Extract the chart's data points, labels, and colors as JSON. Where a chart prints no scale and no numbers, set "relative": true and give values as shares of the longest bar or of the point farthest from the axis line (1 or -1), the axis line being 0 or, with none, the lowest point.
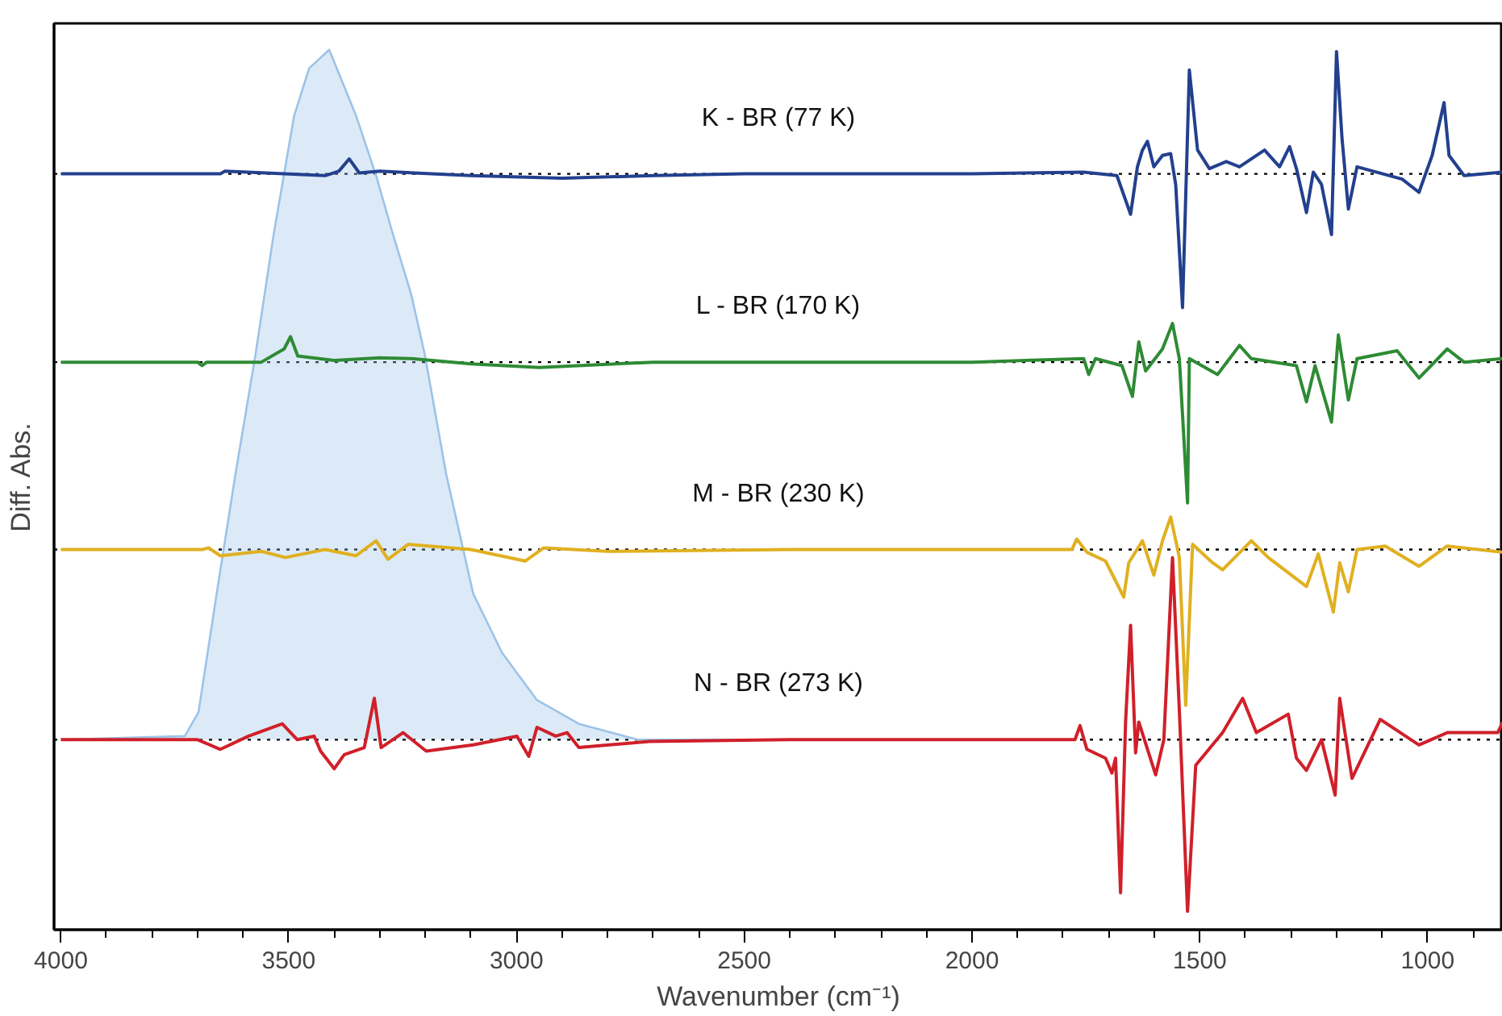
{
  "chart_data": {
    "type": "line",
    "relative": true,
    "xlabel": "Wavenumber (cm⁻¹)",
    "ylabel": "Diff. Abs.",
    "xlim": [
      4015,
      835
    ],
    "xticks": [
      4000,
      3500,
      3000,
      2500,
      2000,
      1500,
      1000,
      {
        "value": 3900,
        "label": null
      },
      {
        "value": 3800,
        "label": null
      },
      {
        "value": 3700,
        "label": null
      },
      {
        "value": 3600,
        "label": null
      },
      {
        "value": 3400,
        "label": null
      },
      {
        "value": 3300,
        "label": null
      },
      {
        "value": 3200,
        "label": null
      },
      {
        "value": 3100,
        "label": null
      },
      {
        "value": 2900,
        "label": null
      },
      {
        "value": 2800,
        "label": null
      },
      {
        "value": 2700,
        "label": null
      },
      {
        "value": 2600,
        "label": null
      },
      {
        "value": 2400,
        "label": null
      },
      {
        "value": 2300,
        "label": null
      },
      {
        "value": 2200,
        "label": null
      },
      {
        "value": 2100,
        "label": null
      },
      {
        "value": 1900,
        "label": null
      },
      {
        "value": 1800,
        "label": null
      },
      {
        "value": 1700,
        "label": null
      },
      {
        "value": 1600,
        "label": null
      },
      {
        "value": 1400,
        "label": null
      },
      {
        "value": 1300,
        "label": null
      },
      {
        "value": 1200,
        "label": null
      },
      {
        "value": 1100,
        "label": null
      },
      {
        "value": 900,
        "label": null
      }
    ],
    "grid": false,
    "legend": false,
    "line_style": "solid",
    "marker": "none",
    "ref_lines": [
      {
        "axis": "y",
        "value": 0.859,
        "color": "#000000",
        "line_style": "dotted"
      },
      {
        "axis": "y",
        "value": 0.645,
        "color": "#000000",
        "line_style": "dotted"
      },
      {
        "axis": "y",
        "value": 0.432,
        "color": "#000000",
        "line_style": "dotted"
      },
      {
        "axis": "y",
        "value": 0.216,
        "color": "#000000",
        "line_style": "dotted"
      }
    ],
    "series": [
      {
        "type": "area",
        "color": "#9cc3e8",
        "x": [
          4000,
          3728,
          3698,
          3658,
          3617,
          3573,
          3533,
          3488,
          3455,
          3411,
          3352,
          3308,
          3271,
          3231,
          3201,
          3154,
          3095,
          3032,
          2955,
          2863,
          2734,
          2399
        ],
        "values": [
          0.216,
          0.22,
          0.247,
          0.382,
          0.517,
          0.653,
          0.79,
          0.925,
          0.979,
          1.0,
          0.925,
          0.857,
          0.79,
          0.722,
          0.653,
          0.517,
          0.382,
          0.315,
          0.261,
          0.234,
          0.216,
          0.216
        ]
      },
      {
        "name": "K - BR (77 K)",
        "color": "#23408e",
        "x": [
          4000,
          3650,
          3640,
          3420,
          3390,
          3367,
          3345,
          3300,
          3100,
          2900,
          2700,
          2500,
          2000,
          1755,
          1682,
          1652,
          1637,
          1626,
          1615,
          1601,
          1582,
          1564,
          1553,
          1538,
          1523,
          1505,
          1479,
          1442,
          1413,
          1358,
          1325,
          1303,
          1288,
          1266,
          1251,
          1233,
          1211,
          1200,
          1188,
          1174,
          1155,
          1056,
          1019,
          990,
          964,
          953,
          920,
          835
        ],
        "values": [
          0.859,
          0.859,
          0.862,
          0.857,
          0.862,
          0.876,
          0.86,
          0.862,
          0.857,
          0.854,
          0.857,
          0.859,
          0.859,
          0.861,
          0.857,
          0.813,
          0.867,
          0.886,
          0.896,
          0.867,
          0.88,
          0.882,
          0.847,
          0.707,
          0.977,
          0.886,
          0.865,
          0.873,
          0.867,
          0.886,
          0.867,
          0.89,
          0.865,
          0.815,
          0.861,
          0.847,
          0.79,
          0.998,
          0.9,
          0.819,
          0.867,
          0.853,
          0.838,
          0.88,
          0.94,
          0.88,
          0.857,
          0.861
        ]
      },
      {
        "name": "L - BR (170 K)",
        "color": "#2e8b34",
        "x": [
          4000,
          3700,
          3690,
          3680,
          3560,
          3510,
          3496,
          3480,
          3400,
          3300,
          3230,
          3100,
          2950,
          2700,
          2400,
          2000,
          1755,
          1744,
          1729,
          1671,
          1648,
          1634,
          1619,
          1582,
          1560,
          1545,
          1527,
          1523,
          1461,
          1413,
          1387,
          1288,
          1266,
          1247,
          1211,
          1196,
          1174,
          1155,
          1067,
          1019,
          957,
          920,
          835
        ],
        "values": [
          0.645,
          0.645,
          0.641,
          0.645,
          0.645,
          0.66,
          0.674,
          0.652,
          0.647,
          0.65,
          0.649,
          0.643,
          0.639,
          0.645,
          0.645,
          0.645,
          0.649,
          0.631,
          0.649,
          0.641,
          0.606,
          0.668,
          0.635,
          0.66,
          0.689,
          0.649,
          0.485,
          0.649,
          0.631,
          0.664,
          0.649,
          0.641,
          0.6,
          0.641,
          0.577,
          0.676,
          0.602,
          0.649,
          0.658,
          0.627,
          0.66,
          0.645,
          0.649
        ]
      },
      {
        "name": "M - BR (230 K)",
        "color": "#e0b020",
        "x": [
          4000,
          3690,
          3676,
          3650,
          3560,
          3507,
          3420,
          3352,
          3308,
          3282,
          3238,
          3100,
          2981,
          2940,
          2800,
          2400,
          2000,
          1781,
          1770,
          1748,
          1707,
          1667,
          1656,
          1626,
          1601,
          1582,
          1564,
          1545,
          1531,
          1516,
          1472,
          1450,
          1387,
          1350,
          1266,
          1240,
          1207,
          1193,
          1174,
          1155,
          1093,
          1019,
          957,
          835
        ],
        "values": [
          0.432,
          0.432,
          0.434,
          0.425,
          0.43,
          0.423,
          0.432,
          0.425,
          0.442,
          0.421,
          0.438,
          0.432,
          0.419,
          0.434,
          0.43,
          0.432,
          0.432,
          0.432,
          0.444,
          0.429,
          0.419,
          0.378,
          0.417,
          0.442,
          0.403,
          0.442,
          0.469,
          0.423,
          0.255,
          0.438,
          0.417,
          0.409,
          0.442,
          0.423,
          0.39,
          0.427,
          0.361,
          0.417,
          0.384,
          0.432,
          0.436,
          0.413,
          0.436,
          0.429
        ]
      },
      {
        "name": "N - BR (273 K)",
        "color": "#d0202a",
        "x": [
          4000,
          3700,
          3650,
          3588,
          3514,
          3481,
          3444,
          3430,
          3400,
          3378,
          3334,
          3312,
          3297,
          3249,
          3198,
          3095,
          2999,
          2973,
          2955,
          2914,
          2889,
          2863,
          2708,
          2400,
          2000,
          1774,
          1763,
          1748,
          1707,
          1693,
          1685,
          1674,
          1663,
          1652,
          1641,
          1634,
          1597,
          1579,
          1560,
          1545,
          1527,
          1509,
          1450,
          1406,
          1376,
          1306,
          1288,
          1266,
          1233,
          1203,
          1193,
          1166,
          1104,
          1019,
          957,
          846,
          835
        ],
        "values": [
          0.216,
          0.216,
          0.205,
          0.22,
          0.234,
          0.216,
          0.22,
          0.203,
          0.183,
          0.199,
          0.207,
          0.263,
          0.207,
          0.224,
          0.203,
          0.21,
          0.22,
          0.197,
          0.23,
          0.22,
          0.224,
          0.207,
          0.214,
          0.216,
          0.216,
          0.216,
          0.232,
          0.205,
          0.195,
          0.178,
          0.195,
          0.042,
          0.236,
          0.346,
          0.201,
          0.236,
          0.176,
          0.216,
          0.423,
          0.249,
          0.021,
          0.187,
          0.224,
          0.263,
          0.224,
          0.245,
          0.195,
          0.181,
          0.216,
          0.153,
          0.263,
          0.172,
          0.239,
          0.21,
          0.224,
          0.224,
          0.236
        ]
      }
    ]
  }
}
